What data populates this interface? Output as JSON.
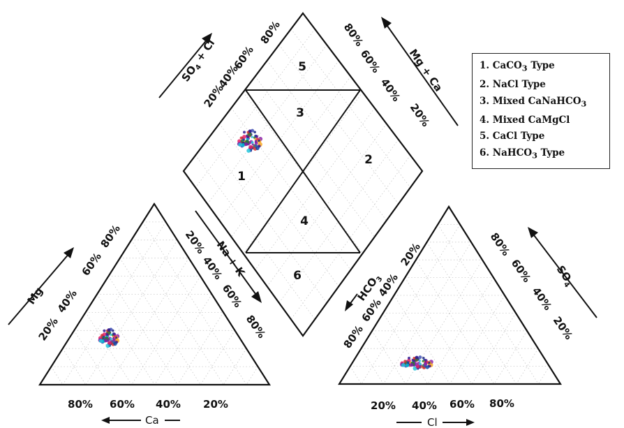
{
  "legend": {
    "items": [
      {
        "num": "1.",
        "pre": "CaCO",
        "sub": "3",
        "post": " Type"
      },
      {
        "num": "2.",
        "pre": " NaCl Type",
        "sub": "",
        "post": ""
      },
      {
        "num": "3.",
        "pre": "Mixed CaNaHCO",
        "sub": "3",
        "post": ""
      },
      {
        "num": "4.",
        "pre": "Mixed CaMgCl",
        "sub": "",
        "post": ""
      },
      {
        "num": "5.",
        "pre": "CaCl Type",
        "sub": "",
        "post": ""
      },
      {
        "num": "6.",
        "pre": "NaHCO",
        "sub": "3",
        "post": " Type"
      }
    ]
  },
  "chart_data": {
    "type": "scatter",
    "subtype": "piper-diagram",
    "zones": [
      "1",
      "2",
      "3",
      "4",
      "5",
      "6"
    ],
    "cation_triangle": {
      "axes": [
        "Mg",
        "Ca",
        "Na + K"
      ],
      "mg_ticks": [
        "20%",
        "40%",
        "60%",
        "80%"
      ],
      "ca_ticks": [
        "80%",
        "60%",
        "40%",
        "20%"
      ],
      "nak_ticks": [
        "20%",
        "40%",
        "60%",
        "80%"
      ],
      "cluster": {
        "Ca": 68,
        "Mg": 20,
        "Na_K": 12
      }
    },
    "anion_triangle": {
      "axes": [
        "HCO3",
        "Cl",
        "SO4"
      ],
      "hco3_ticks": [
        "20%",
        "40%",
        "60%",
        "80%"
      ],
      "cl_ticks": [
        "20%",
        "40%",
        "60%",
        "80%"
      ],
      "so4_ticks": [
        "80%",
        "60%",
        "40%",
        "20%"
      ],
      "cluster": {
        "HCO3": 62,
        "Cl": 32,
        "SO4": 6
      }
    },
    "diamond": {
      "axes": [
        "SO4 + Cl",
        "Mg + Ca"
      ],
      "so4_cl_ticks": [
        "20%",
        "40%",
        "60%",
        "80%"
      ],
      "mg_ca_ticks": [
        "80%",
        "60%",
        "40%",
        "20%"
      ],
      "cluster_zone": "1"
    },
    "grid": true,
    "legend_position": "top-right"
  }
}
